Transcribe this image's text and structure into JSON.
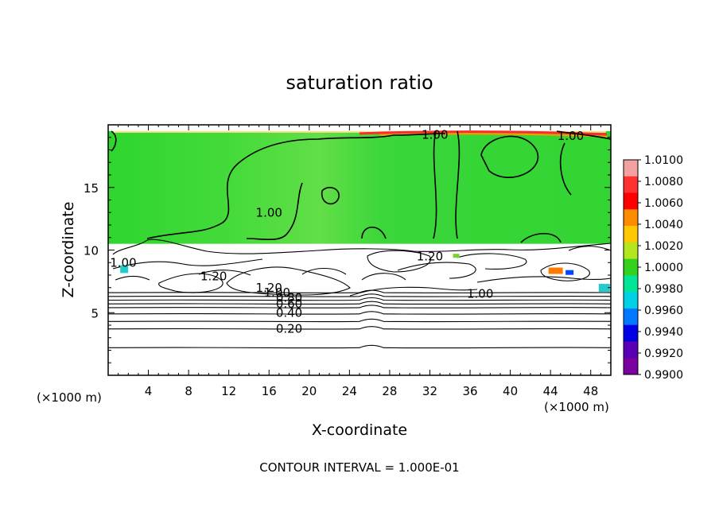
{
  "chart_data": {
    "type": "heatmap",
    "title": "saturation ratio",
    "xlabel": "X-coordinate",
    "ylabel": "Z-coordinate",
    "x_unit_left": "(×1000 m)",
    "x_unit_right": "(×1000 m)",
    "footer": "CONTOUR INTERVAL = 1.000E-01",
    "xlim": [
      0,
      50
    ],
    "ylim": [
      0,
      20
    ],
    "x_ticks": [
      4,
      8,
      12,
      16,
      20,
      24,
      28,
      32,
      36,
      40,
      44,
      48
    ],
    "y_ticks": [
      5,
      10,
      15
    ],
    "colorbar": {
      "range": [
        0.99,
        1.01
      ],
      "labels": [
        "1.0100",
        "1.0080",
        "1.0060",
        "1.0040",
        "1.0020",
        "1.0000",
        "0.9980",
        "0.9960",
        "0.9940",
        "0.9920",
        "0.9900"
      ],
      "colors": [
        "#f2a0a0",
        "#ff3030",
        "#ff0000",
        "#ff8c00",
        "#ffc800",
        "#b4e61e",
        "#32d21e",
        "#00e696",
        "#00d2e6",
        "#0078ff",
        "#0000e6",
        "#5a00b4",
        "#7a00a0"
      ]
    },
    "green_layer": {
      "z_bottom": 10.5,
      "z_top": 19.5,
      "color": "#33d633"
    },
    "contour_labels": [
      {
        "text": "1.00",
        "x": 32.5,
        "z": 19.2
      },
      {
        "text": "1.00",
        "x": 46.0,
        "z": 19.1
      },
      {
        "text": "1.00",
        "x": 16.0,
        "z": 13.0
      },
      {
        "text": "1.00",
        "x": 1.5,
        "z": 9.0
      },
      {
        "text": "1.20",
        "x": 10.5,
        "z": 7.9
      },
      {
        "text": "1.20",
        "x": 32.0,
        "z": 9.5
      },
      {
        "text": "1.20",
        "x": 16.0,
        "z": 7.0
      },
      {
        "text": "1.00",
        "x": 16.8,
        "z": 6.6
      },
      {
        "text": "0.80",
        "x": 18.0,
        "z": 6.2
      },
      {
        "text": "0.60",
        "x": 18.0,
        "z": 5.7
      },
      {
        "text": "0.40",
        "x": 18.0,
        "z": 5.0
      },
      {
        "text": "1.00",
        "x": 37.0,
        "z": 6.5
      },
      {
        "text": "0.20",
        "x": 18.0,
        "z": 3.7
      }
    ],
    "horizontal_contours_z": [
      2.2,
      3.7,
      4.3,
      4.9,
      5.4,
      5.7,
      6.0,
      6.3,
      6.6
    ]
  }
}
